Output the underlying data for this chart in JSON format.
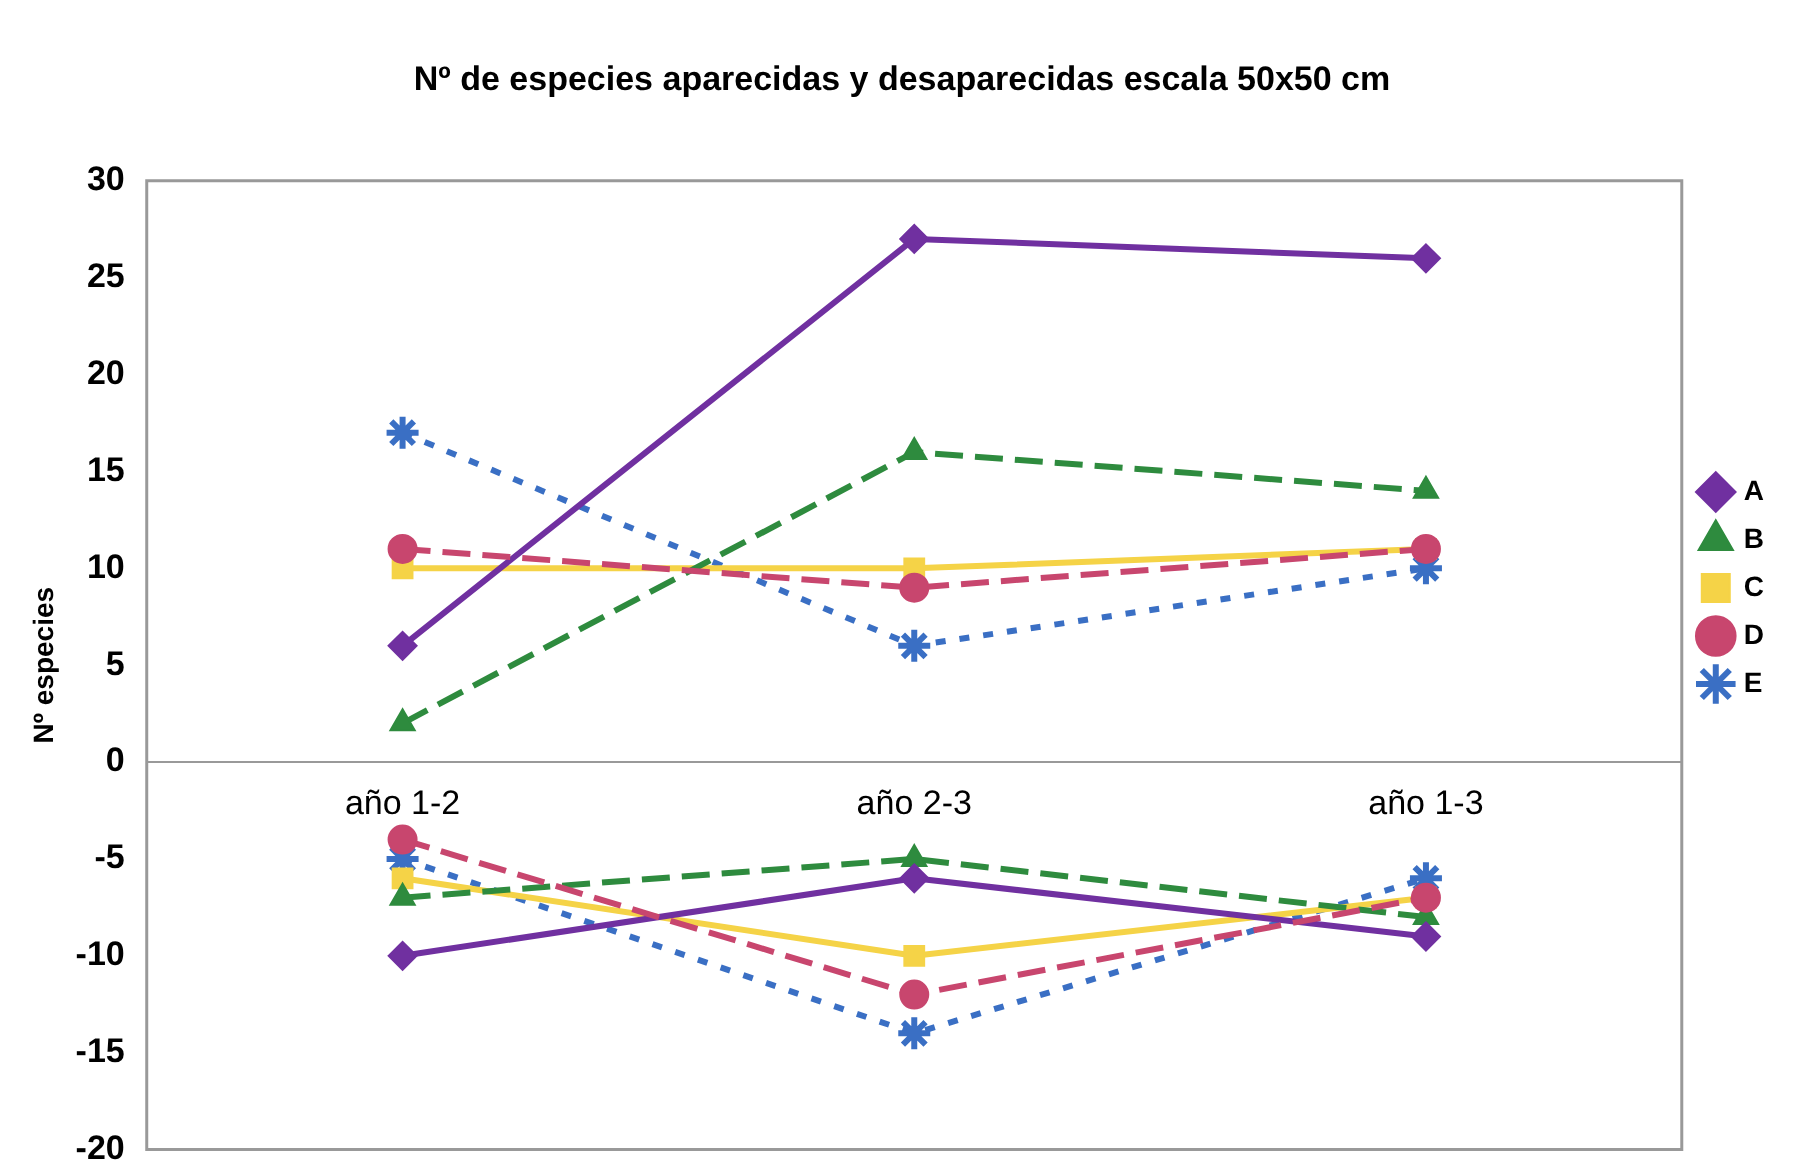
{
  "chart_data": {
    "type": "line",
    "title": "Nº de especies aparecidas y desaparecidas escala 50x50 cm",
    "ylabel": "Nº especies",
    "categories": [
      "año 1-2",
      "año 2-3",
      "año 1-3"
    ],
    "series": [
      {
        "name": "A",
        "color": "#7030a0",
        "values": [
          6,
          27,
          26
        ],
        "marker": "diamond",
        "line_style": "solid"
      },
      {
        "name": "B",
        "color": "#2e8b3e",
        "values": [
          2,
          16,
          14
        ],
        "marker": "triangle",
        "line_style": "dashed"
      },
      {
        "name": "C",
        "color": "#f5d347",
        "values": [
          10,
          10,
          11
        ],
        "marker": "square",
        "line_style": "solid"
      },
      {
        "name": "D",
        "color": "#c8466e",
        "values": [
          11,
          9,
          11
        ],
        "marker": "circle",
        "line_style": "dashed"
      },
      {
        "name": "E",
        "color": "#3a6fc4",
        "values": [
          17,
          6,
          10
        ],
        "marker": "cross",
        "line_style": "dotted"
      },
      {
        "color": "#7030a0",
        "values": [
          -10,
          -6,
          -9
        ],
        "marker": "diamond",
        "line_style": "solid"
      },
      {
        "color": "#2e8b3e",
        "values": [
          -7,
          -5,
          -8
        ],
        "marker": "triangle",
        "line_style": "dashed"
      },
      {
        "color": "#f5d347",
        "values": [
          -6,
          -10,
          -7
        ],
        "marker": "square",
        "line_style": "solid"
      },
      {
        "color": "#c8466e",
        "values": [
          -4,
          -12,
          -7
        ],
        "marker": "circle",
        "line_style": "dashed"
      },
      {
        "color": "#3a6fc4",
        "values": [
          -5,
          -14,
          -6
        ],
        "marker": "cross",
        "line_style": "dotted"
      }
    ],
    "ylim": [
      -20,
      30
    ],
    "yticks": [
      -20,
      -15,
      -10,
      -5,
      0,
      5,
      10,
      15,
      20,
      25,
      30
    ],
    "grid": false,
    "legend": "right"
  }
}
